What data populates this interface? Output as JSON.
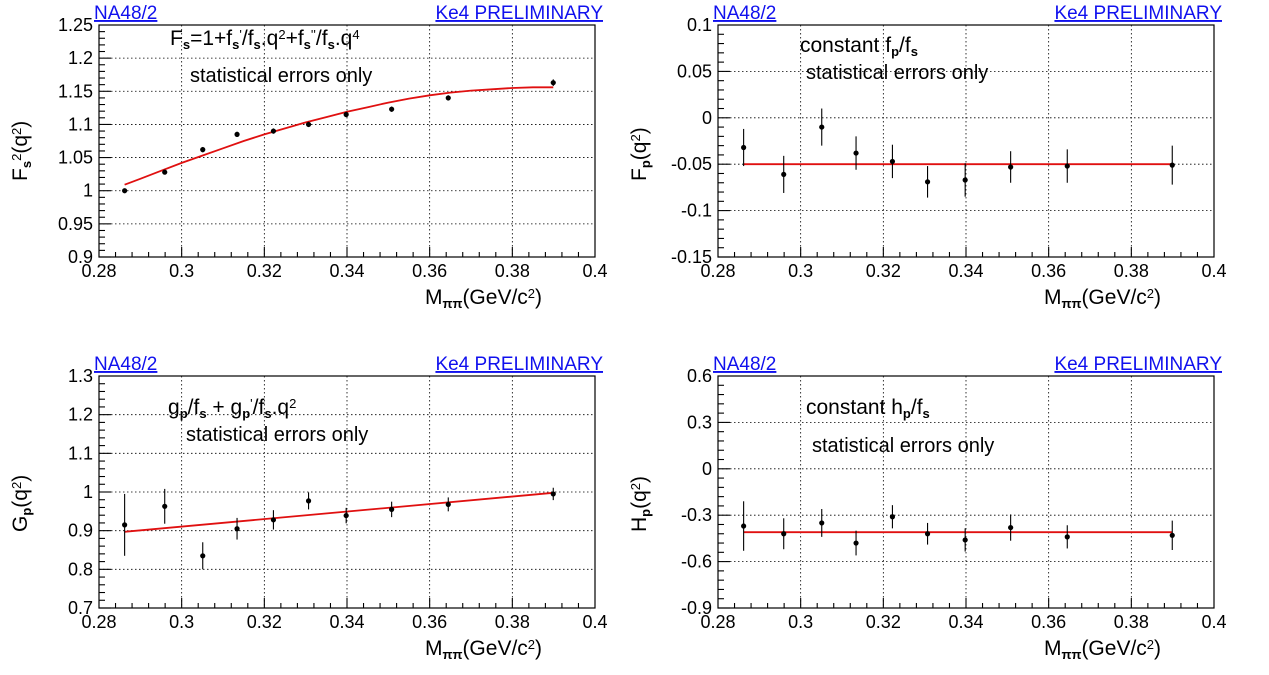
{
  "chart_data": [
    {
      "type": "scatter",
      "header_left": "NA48/2",
      "header_right": "Ke4 PRELIMINARY",
      "formula_parts": [
        "F",
        "s",
        "=1+f",
        "s",
        "'",
        "/f",
        "s",
        ".q",
        "2",
        "+f",
        "s",
        "''",
        "/f",
        "s",
        ".q",
        "4"
      ],
      "annotation": "statistical errors only",
      "ylabel_parts": [
        "F",
        "s",
        "2",
        "(q",
        "2",
        ")"
      ],
      "xlabel_parts": [
        "M",
        "ππ",
        "(GeV/c",
        "2",
        ")"
      ],
      "xlim": [
        0.28,
        0.4
      ],
      "ylim": [
        0.9,
        1.25
      ],
      "x_ticks": [
        "0.28",
        "0.3",
        "0.32",
        "0.34",
        "0.36",
        "0.38",
        "0.4"
      ],
      "y_ticks": [
        "0.9",
        "0.95",
        "1",
        "1.05",
        "1.1",
        "1.15",
        "1.2",
        "1.25"
      ],
      "points": {
        "x": [
          0.2862,
          0.2959,
          0.3051,
          0.3134,
          0.3222,
          0.3307,
          0.3398,
          0.3508,
          0.3645,
          0.3899
        ],
        "y": [
          1.0,
          1.028,
          1.062,
          1.085,
          1.09,
          1.1,
          1.115,
          1.123,
          1.14,
          1.163
        ],
        "err": [
          0.002,
          0.003,
          0.004,
          0.004,
          0.004,
          0.004,
          0.004,
          0.004,
          0.004,
          0.005
        ]
      },
      "fit": {
        "x": [
          0.2862,
          0.29,
          0.295,
          0.3,
          0.305,
          0.31,
          0.315,
          0.32,
          0.325,
          0.33,
          0.335,
          0.34,
          0.345,
          0.35,
          0.355,
          0.36,
          0.365,
          0.37,
          0.375,
          0.38,
          0.385,
          0.3899
        ],
        "y": [
          1.009,
          1.018,
          1.03,
          1.042,
          1.053,
          1.064,
          1.075,
          1.085,
          1.094,
          1.103,
          1.111,
          1.119,
          1.126,
          1.133,
          1.139,
          1.144,
          1.148,
          1.151,
          1.153,
          1.155,
          1.156,
          1.156
        ]
      }
    },
    {
      "type": "scatter",
      "header_left": "NA48/2",
      "header_right": "Ke4 PRELIMINARY",
      "formula_parts": [
        "constant f",
        "p",
        "/f",
        "s"
      ],
      "annotation": "statistical errors only",
      "ylabel_parts": [
        "F",
        "p",
        "(q",
        "2",
        ")"
      ],
      "xlabel_parts": [
        "M",
        "ππ",
        "(GeV/c",
        "2",
        ")"
      ],
      "xlim": [
        0.28,
        0.4
      ],
      "ylim": [
        -0.15,
        0.1
      ],
      "x_ticks": [
        "0.28",
        "0.3",
        "0.32",
        "0.34",
        "0.36",
        "0.38",
        "0.4"
      ],
      "y_ticks": [
        "-0.15",
        "-0.1",
        "-0.05",
        "0",
        "0.05",
        "0.1"
      ],
      "points": {
        "x": [
          0.2862,
          0.2959,
          0.3051,
          0.3134,
          0.3222,
          0.3307,
          0.3398,
          0.3508,
          0.3645,
          0.3899
        ],
        "y": [
          -0.032,
          -0.061,
          -0.01,
          -0.038,
          -0.047,
          -0.069,
          -0.067,
          -0.053,
          -0.052,
          -0.051
        ],
        "err": [
          0.02,
          0.02,
          0.02,
          0.018,
          0.018,
          0.017,
          0.018,
          0.017,
          0.018,
          0.021
        ]
      },
      "fit": {
        "x": [
          0.2862,
          0.3899
        ],
        "y": [
          -0.05,
          -0.05
        ]
      }
    },
    {
      "type": "scatter",
      "header_left": "NA48/2",
      "header_right": "Ke4 PRELIMINARY",
      "formula_parts": [
        "g",
        "p",
        "/f",
        "s",
        " +  g",
        "p",
        "'",
        "/f",
        "s",
        ".q",
        "2"
      ],
      "annotation": "statistical errors only",
      "ylabel_parts": [
        "G",
        "p",
        "(q",
        "2",
        ")"
      ],
      "xlabel_parts": [
        "M",
        "ππ",
        "(GeV/c",
        "2",
        ")"
      ],
      "xlim": [
        0.28,
        0.4
      ],
      "ylim": [
        0.7,
        1.3
      ],
      "x_ticks": [
        "0.28",
        "0.3",
        "0.32",
        "0.34",
        "0.36",
        "0.38",
        "0.4"
      ],
      "y_ticks": [
        "0.7",
        "0.8",
        "0.9",
        "1",
        "1.1",
        "1.2",
        "1.3"
      ],
      "points": {
        "x": [
          0.2862,
          0.2959,
          0.3051,
          0.3134,
          0.3222,
          0.3307,
          0.3398,
          0.3508,
          0.3645,
          0.3899
        ],
        "y": [
          0.915,
          0.963,
          0.835,
          0.905,
          0.928,
          0.977,
          0.939,
          0.955,
          0.968,
          0.995
        ],
        "err": [
          0.08,
          0.045,
          0.035,
          0.028,
          0.025,
          0.022,
          0.02,
          0.02,
          0.018,
          0.016
        ]
      },
      "fit": {
        "x": [
          0.2862,
          0.3899
        ],
        "y": [
          0.897,
          0.998
        ]
      }
    },
    {
      "type": "scatter",
      "header_left": "NA48/2",
      "header_right": "Ke4 PRELIMINARY",
      "formula_parts": [
        "constant h",
        "p",
        "/f",
        "s"
      ],
      "annotation": "statistical errors only",
      "ylabel_parts": [
        "H",
        "p",
        "(q",
        "2",
        ")"
      ],
      "xlabel_parts": [
        "M",
        "ππ",
        "(GeV/c",
        "2",
        ")"
      ],
      "xlim": [
        0.28,
        0.4
      ],
      "ylim": [
        -0.9,
        0.6
      ],
      "x_ticks": [
        "0.28",
        "0.3",
        "0.32",
        "0.34",
        "0.36",
        "0.38",
        "0.4"
      ],
      "y_ticks": [
        "-0.9",
        "-0.6",
        "-0.3",
        "0",
        "0.3",
        "0.6"
      ],
      "points": {
        "x": [
          0.2862,
          0.2959,
          0.3051,
          0.3134,
          0.3222,
          0.3307,
          0.3398,
          0.3508,
          0.3645,
          0.3899
        ],
        "y": [
          -0.37,
          -0.42,
          -0.35,
          -0.48,
          -0.31,
          -0.42,
          -0.46,
          -0.38,
          -0.44,
          -0.43
        ],
        "err": [
          0.16,
          0.1,
          0.09,
          0.08,
          0.075,
          0.07,
          0.075,
          0.085,
          0.075,
          0.095
        ]
      },
      "fit": {
        "x": [
          0.2862,
          0.3899
        ],
        "y": [
          -0.41,
          -0.41
        ]
      }
    }
  ]
}
